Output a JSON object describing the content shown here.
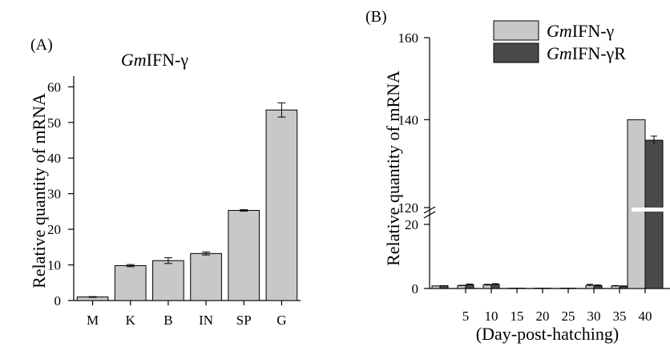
{
  "chart_data": [
    {
      "panel": "(A)",
      "type": "bar",
      "title_italic": "Gm",
      "title_rest": "IFN-γ",
      "xlabel": "",
      "ylabel": "Relative quantity of mRNA",
      "categories": [
        "M",
        "K",
        "B",
        "IN",
        "SP",
        "G"
      ],
      "values": [
        1,
        9.8,
        11.2,
        13.2,
        25.3,
        53.5
      ],
      "errors": [
        0.1,
        0.3,
        0.8,
        0.4,
        0.2,
        2.0
      ],
      "ylim": [
        0,
        63
      ],
      "yticks": [
        0,
        10,
        20,
        30,
        40,
        50,
        60
      ],
      "bar_color": "#c8c8c8",
      "grid": false
    },
    {
      "panel": "(B)",
      "type": "bar",
      "xlabel": "(Day-post-hatching)",
      "ylabel": "Relative quantity of mRNA",
      "categories": [
        "",
        "5",
        "10",
        "15",
        "20",
        "25",
        "30",
        "35",
        "40"
      ],
      "series": [
        {
          "name_italic": "Gm",
          "name_rest": "IFN-γ",
          "color": "#c8c8c8",
          "values": [
            0.8,
            0.9,
            1.1,
            0.1,
            0.1,
            0.1,
            1.0,
            0.8,
            140
          ],
          "errors": [
            0,
            0.1,
            0.2,
            0,
            0,
            0,
            0.3,
            0.1,
            0
          ]
        },
        {
          "name_italic": "Gm",
          "name_rest": "IFN-γR",
          "color": "#4a4a4a",
          "values": [
            0.9,
            1.2,
            1.3,
            0.1,
            0.1,
            0.1,
            0.9,
            0.7,
            135
          ],
          "errors": [
            0,
            0.2,
            0.2,
            0,
            0,
            0,
            0.2,
            0.1,
            1.0
          ]
        }
      ],
      "yticks": [
        0,
        20,
        120,
        140,
        160
      ],
      "axis_break": [
        25,
        115
      ],
      "ylim": [
        0,
        160
      ],
      "legend": "top-right",
      "grid": false
    }
  ]
}
